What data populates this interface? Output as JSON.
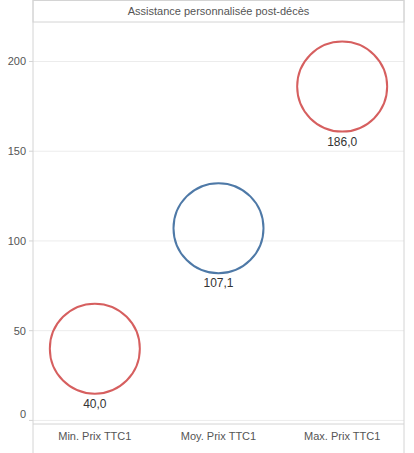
{
  "chart_data": {
    "type": "scatter",
    "title": "Assistance personnalisée post-décès",
    "categories": [
      "Min. Prix TTC1",
      "Moy. Prix TTC1",
      "Max. Prix TTC1"
    ],
    "values": [
      40,
      107.1,
      186
    ],
    "value_labels": [
      "40,0",
      "107,1",
      "186,0"
    ],
    "colors": [
      "#d65f5f",
      "#4e79a7",
      "#d65f5f"
    ],
    "marker": "circle",
    "ylim": [
      -2,
      222
    ],
    "yticks": [
      0,
      50,
      100,
      150,
      200
    ],
    "grid": true,
    "data_labels": true
  }
}
